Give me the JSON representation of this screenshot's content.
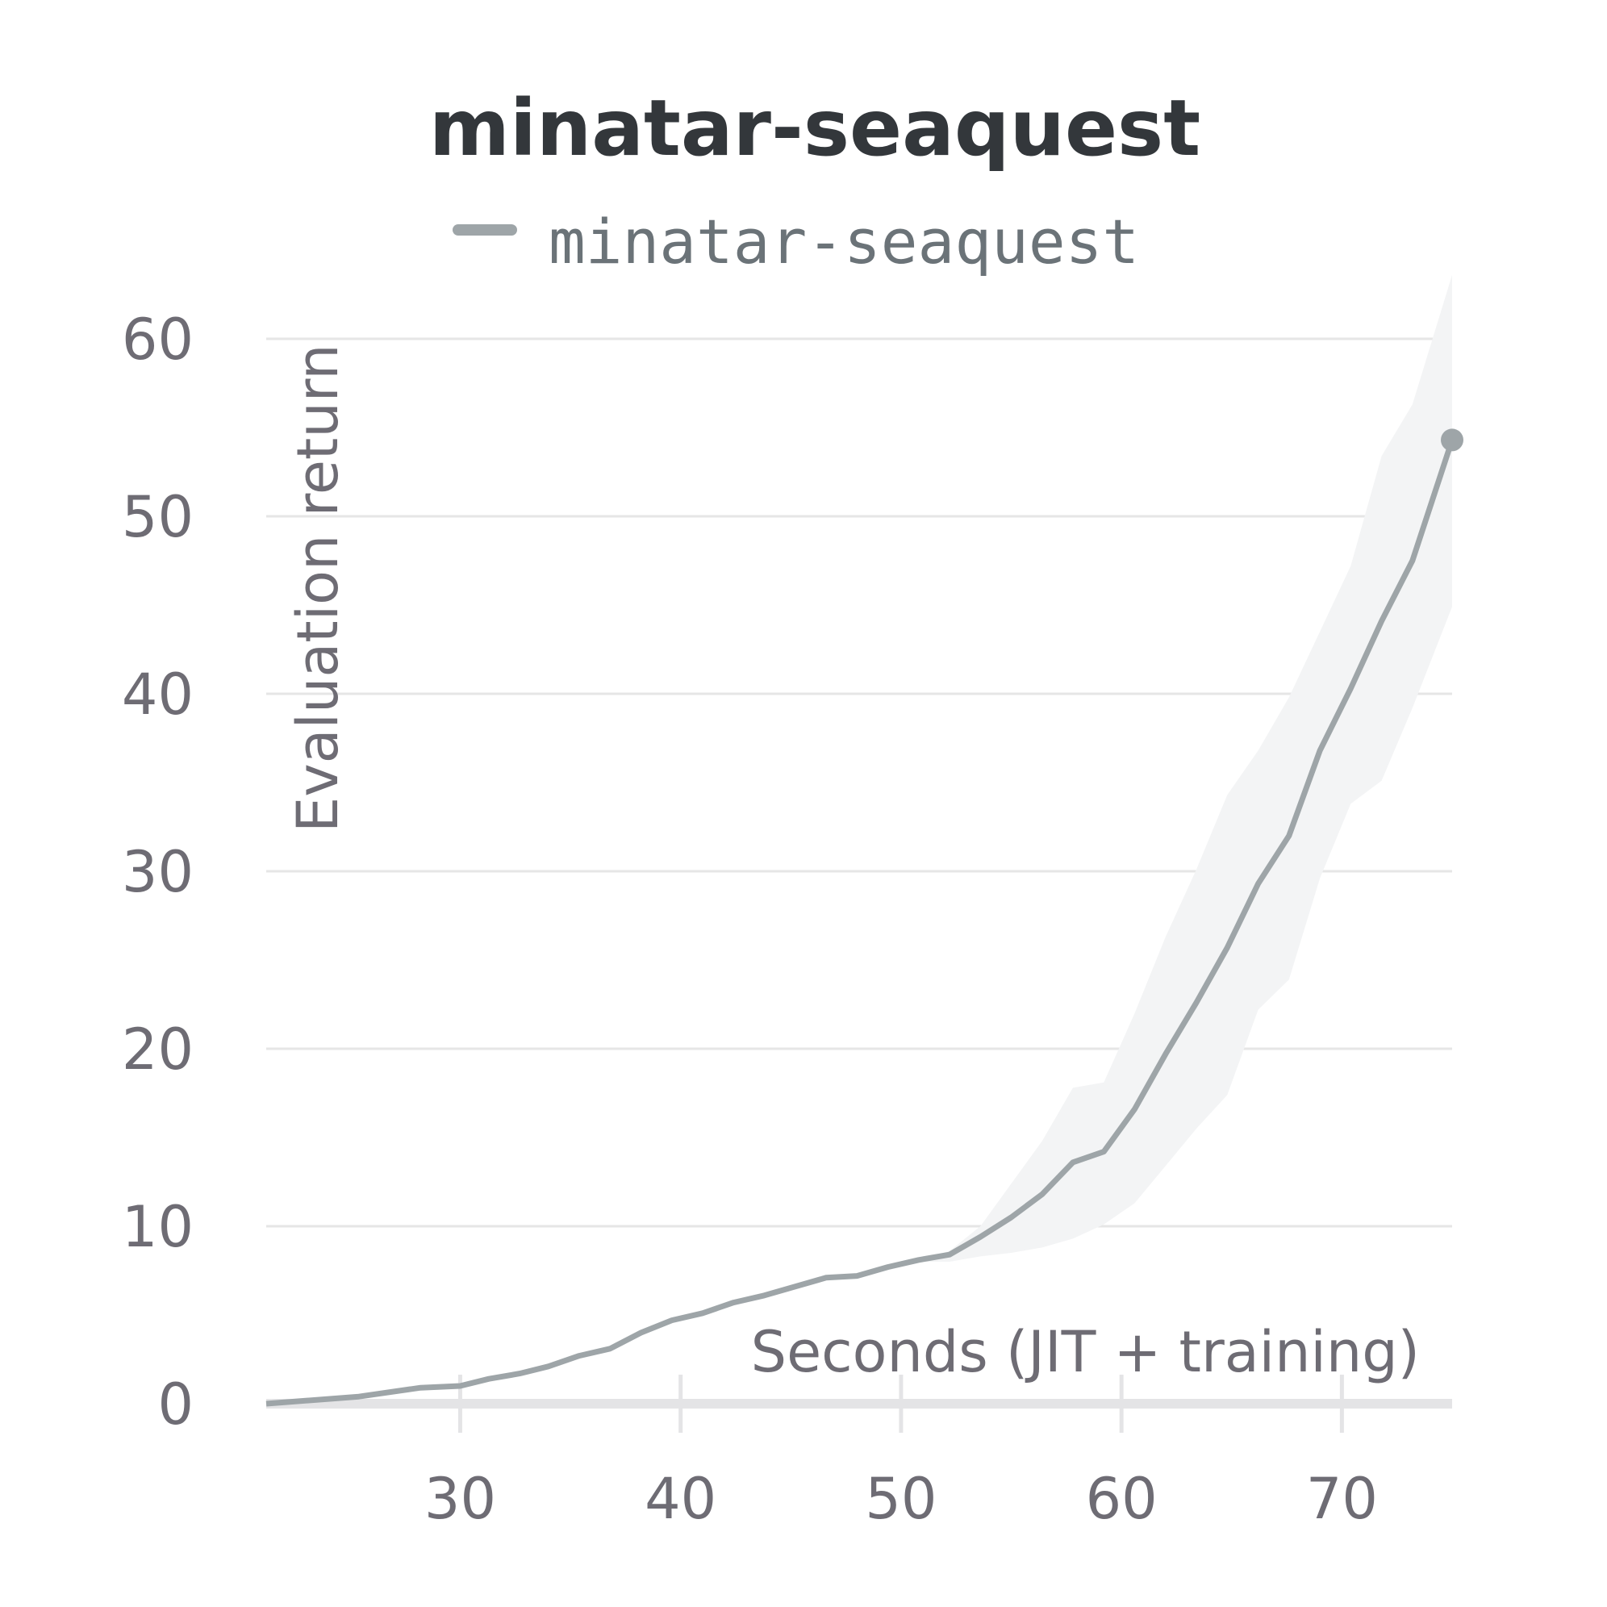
{
  "chart_data": {
    "type": "line",
    "title": "minatar-seaquest",
    "xlabel": "Seconds (JIT + training)",
    "ylabel": "Evaluation return",
    "xlim": [
      21.2,
      75
    ],
    "ylim": [
      0,
      63
    ],
    "xticks": [
      30,
      40,
      50,
      60,
      70
    ],
    "yticks": [
      0,
      10,
      20,
      30,
      40,
      50,
      60
    ],
    "grid": "horizontal",
    "legend_position": "top",
    "series": [
      {
        "name": "minatar-seaquest",
        "color": "#9ea5a8",
        "band_color": "#f3f4f5",
        "x": [
          21.2,
          25.4,
          28.2,
          30,
          31.3,
          32.7,
          34,
          35.4,
          36.8,
          38.2,
          39.6,
          41,
          42.4,
          43.8,
          45.2,
          46.6,
          48,
          49.4,
          50.8,
          52.2,
          53.6,
          55,
          56.4,
          57.8,
          59.2,
          60.6,
          62,
          63.4,
          64.8,
          66.2,
          67.6,
          69,
          70.4,
          71.8,
          73.2,
          75
        ],
        "y": [
          0,
          0.4,
          0.9,
          1.0,
          1.4,
          1.7,
          2.1,
          2.7,
          3.1,
          4.0,
          4.7,
          5.1,
          5.7,
          6.1,
          6.6,
          7.1,
          7.2,
          7.7,
          8.1,
          8.4,
          9.4,
          10.5,
          11.8,
          13.6,
          14.2,
          16.6,
          19.7,
          22.6,
          25.7,
          29.3,
          32.0,
          36.8,
          40.3,
          44.1,
          47.5,
          54.3
        ],
        "y_upper": [
          0,
          0.4,
          0.9,
          1.0,
          1.4,
          1.7,
          2.1,
          2.7,
          3.1,
          4.0,
          4.7,
          5.1,
          5.7,
          6.1,
          6.6,
          7.1,
          7.2,
          7.7,
          8.1,
          8.6,
          10.0,
          12.4,
          14.8,
          17.8,
          18.1,
          22.0,
          26.3,
          30.1,
          34.3,
          36.8,
          39.8,
          43.5,
          47.2,
          53.4,
          56.3,
          63.6
        ],
        "y_lower": [
          0,
          0.4,
          0.9,
          1.0,
          1.4,
          1.7,
          2.1,
          2.7,
          3.1,
          4.0,
          4.7,
          5.1,
          5.7,
          6.1,
          6.6,
          7.1,
          7.2,
          7.7,
          8.0,
          8.0,
          8.3,
          8.5,
          8.8,
          9.3,
          10.1,
          11.3,
          13.4,
          15.5,
          17.4,
          22.2,
          23.9,
          29.6,
          33.8,
          35.1,
          39.2,
          44.9
        ]
      }
    ]
  }
}
